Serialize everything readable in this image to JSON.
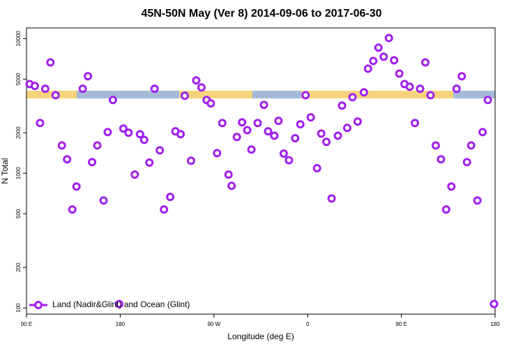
{
  "chart_data": {
    "type": "scatter",
    "title": "45N-50N May (Ver 8)   2014-09-06 to 2017-06-30",
    "x_label": "Longitude (deg E)",
    "y_label": "N Total",
    "yscale": "log",
    "xlim": [
      90,
      540
    ],
    "ylim": [
      90,
      12000
    ],
    "xticks": [
      {
        "value": 90,
        "label": "90 E"
      },
      {
        "value": 180,
        "label": "180"
      },
      {
        "value": 270,
        "label": "90 W"
      },
      {
        "value": 360,
        "label": "0"
      },
      {
        "value": 450,
        "label": "90 E"
      },
      {
        "value": 540,
        "label": "180"
      }
    ],
    "yticks": [
      100,
      200,
      500,
      1000,
      2000,
      5000,
      10000
    ],
    "legend": "bottom-left",
    "x": [
      93,
      98,
      103,
      108,
      113,
      118,
      124,
      129,
      134,
      138,
      144,
      149,
      153,
      158,
      164,
      168,
      173,
      179,
      183,
      188,
      194,
      199,
      203,
      208,
      213,
      218,
      222,
      228,
      233,
      238,
      242,
      248,
      253,
      258,
      263,
      267,
      273,
      278,
      284,
      287,
      292,
      297,
      302,
      306,
      312,
      318,
      322,
      328,
      332,
      337,
      342,
      348,
      353,
      358,
      363,
      369,
      373,
      378,
      383,
      389,
      393,
      398,
      403,
      408,
      414,
      418,
      423,
      428,
      433,
      438,
      443,
      448,
      453,
      458,
      463,
      468,
      473,
      478,
      483,
      488,
      493,
      498,
      503,
      508,
      513,
      517,
      523,
      528,
      533,
      539
    ],
    "series": [
      {
        "name": "Land (Nadir&Glint) and Ocean (Glint)",
        "color": "#a020f0",
        "values": [
          4600,
          4450,
          2360,
          4240,
          6660,
          3800,
          1610,
          1270,
          538,
          797,
          4240,
          5250,
          1210,
          1610,
          628,
          2020,
          3500,
          107,
          2150,
          2000,
          977,
          1950,
          1770,
          1200,
          4240,
          1480,
          538,
          667,
          2050,
          1950,
          3760,
          1240,
          4890,
          4340,
          3500,
          3300,
          1410,
          2360,
          977,
          807,
          1860,
          2390,
          2090,
          1500,
          2360,
          3220,
          2050,
          1900,
          2450,
          1400,
          1250,
          1820,
          2310,
          3800,
          2600,
          1090,
          1970,
          1710,
          650,
          1900,
          3180,
          2170,
          3670,
          2420,
          3990,
          5980,
          6820,
          8570,
          7330,
          10100,
          6900,
          5500,
          4600,
          4390,
          2360,
          4240,
          6660,
          3800,
          1610,
          1270,
          538,
          797,
          4240,
          5250,
          1210,
          1610,
          628,
          2020,
          3500,
          107
        ]
      }
    ]
  }
}
